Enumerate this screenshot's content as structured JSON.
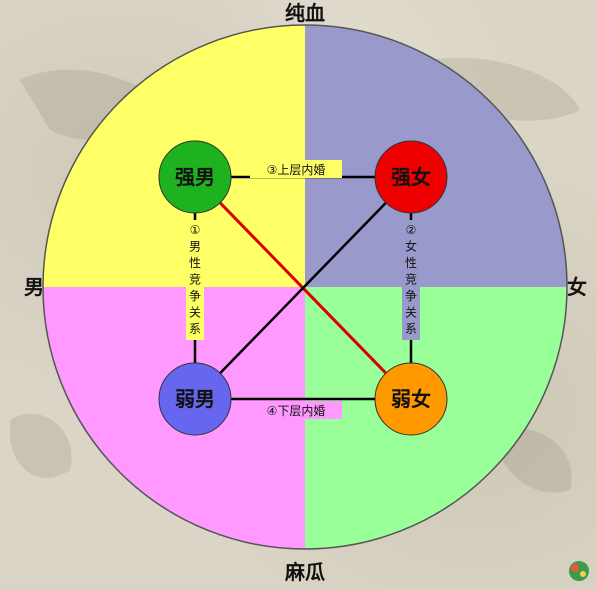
{
  "axes": {
    "top": "纯血",
    "bottom": "麻瓜",
    "left": "男",
    "right": "女"
  },
  "quadrant_colors": {
    "top_left": "#ffff66",
    "top_right": "#9999cc",
    "bottom_left": "#ff99ff",
    "bottom_right": "#99ff99"
  },
  "nodes": [
    {
      "id": "strong-male",
      "label": "强男",
      "color": "#1fb21f"
    },
    {
      "id": "strong-female",
      "label": "强女",
      "color": "#ee0000"
    },
    {
      "id": "weak-male",
      "label": "弱男",
      "color": "#6666ee"
    },
    {
      "id": "weak-female",
      "label": "弱女",
      "color": "#ff9900"
    }
  ],
  "edge_labels": {
    "top": "③上层内婚",
    "bottom": "④下层内婚",
    "left": [
      "①",
      "男",
      "性",
      "竞",
      "争",
      "关",
      "系"
    ],
    "right": [
      "②",
      "女",
      "性",
      "竞",
      "争",
      "关",
      "系"
    ]
  },
  "edge_colors": {
    "default": "#000000",
    "highlight": "#dd0000"
  }
}
